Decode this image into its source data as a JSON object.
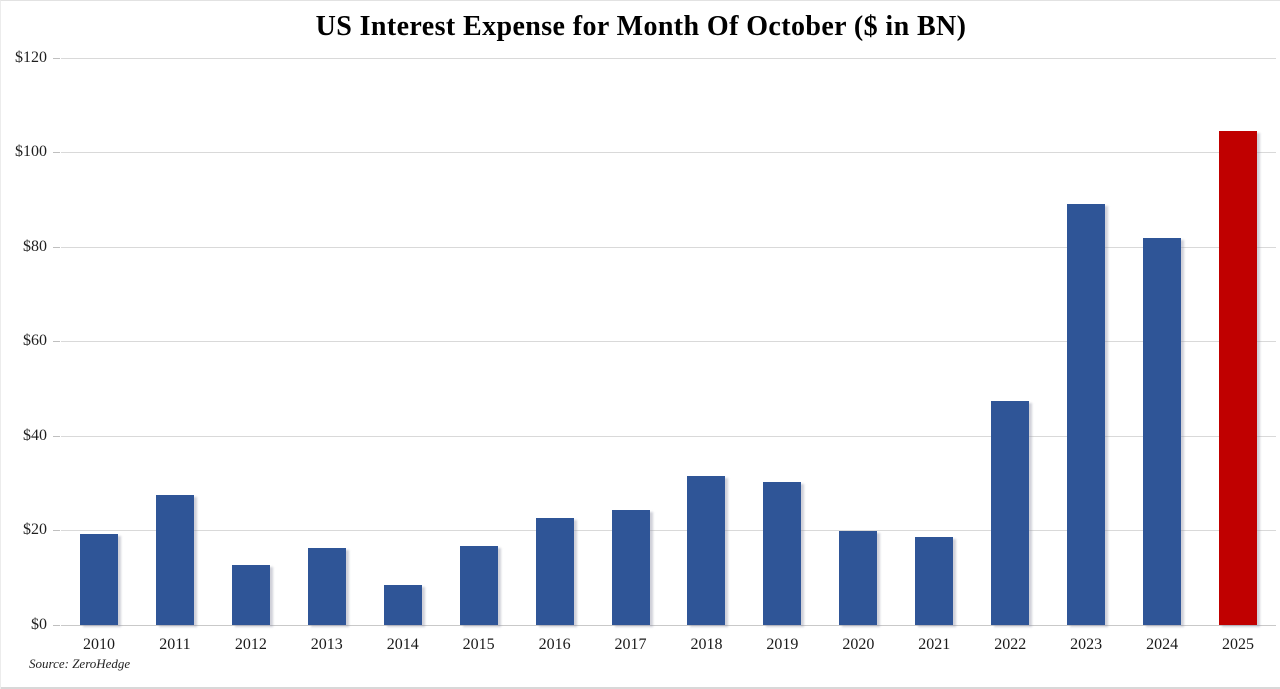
{
  "page": {
    "kind": "static-chart-screenshot"
  },
  "chart_data": {
    "type": "bar",
    "title": "US Interest Expense for Month Of October ($ in BN)",
    "source": "Source: ZeroHedge",
    "categories": [
      "2010",
      "2011",
      "2012",
      "2013",
      "2014",
      "2015",
      "2016",
      "2017",
      "2018",
      "2019",
      "2020",
      "2021",
      "2022",
      "2023",
      "2024",
      "2025"
    ],
    "values": [
      19.3,
      27.5,
      12.6,
      16.3,
      8.5,
      16.7,
      22.7,
      24.3,
      31.5,
      30.2,
      19.9,
      18.7,
      47.3,
      89.0,
      81.9,
      104.5
    ],
    "unit": "$ BN",
    "xlabel": "",
    "ylabel": "",
    "ylim": [
      0,
      120
    ],
    "ytick_step": 20,
    "ytick_labels": [
      "$0",
      "$20",
      "$40",
      "$60",
      "$80",
      "$100",
      "$120"
    ],
    "grid": "horizontal",
    "legend": "none",
    "bar_color": "#2F5597",
    "highlight_category": "2025",
    "highlight_color": "#C00000"
  }
}
